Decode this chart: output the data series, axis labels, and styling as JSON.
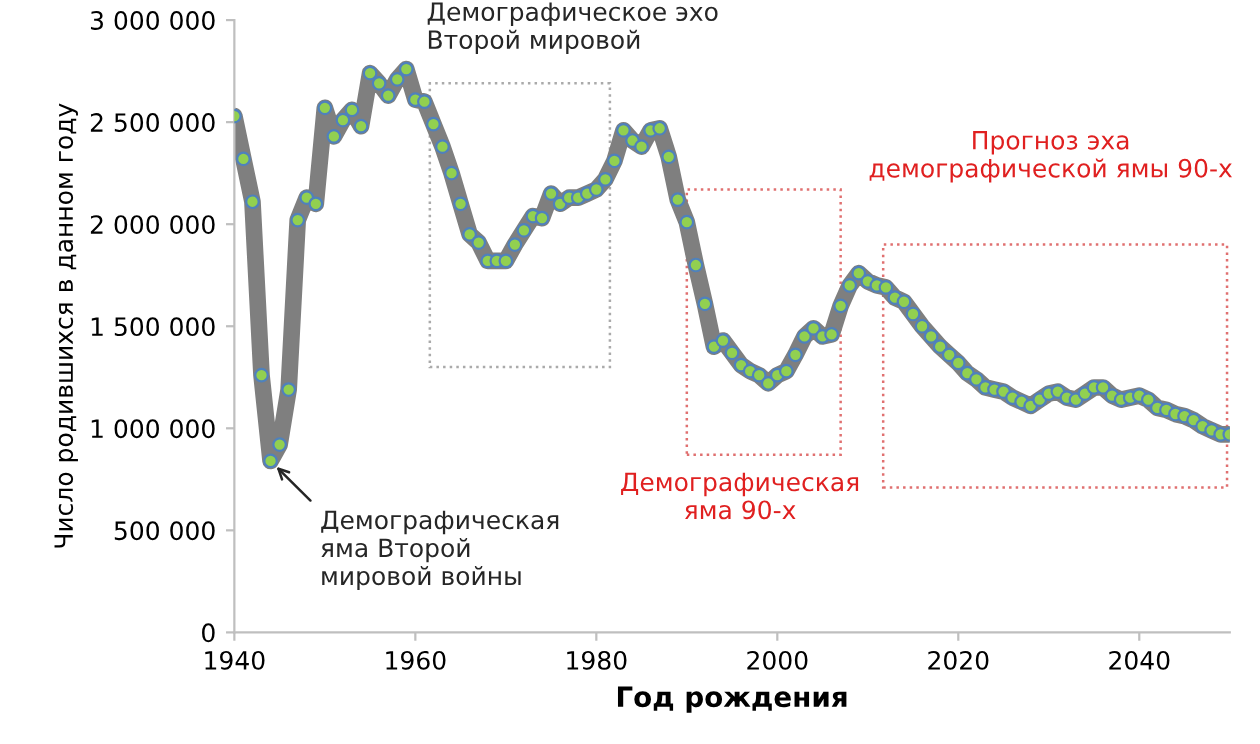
{
  "chart_data": {
    "type": "line",
    "xlabel": "Год рождения",
    "ylabel": "Число родившихся в данном году",
    "x": [
      1940,
      1941,
      1942,
      1943,
      1944,
      1945,
      1946,
      1947,
      1948,
      1949,
      1950,
      1951,
      1952,
      1953,
      1954,
      1955,
      1956,
      1957,
      1958,
      1959,
      1960,
      1961,
      1962,
      1963,
      1964,
      1965,
      1966,
      1967,
      1968,
      1969,
      1970,
      1971,
      1972,
      1973,
      1974,
      1975,
      1976,
      1977,
      1978,
      1979,
      1980,
      1981,
      1982,
      1983,
      1984,
      1985,
      1986,
      1987,
      1988,
      1989,
      1990,
      1991,
      1992,
      1993,
      1994,
      1995,
      1996,
      1997,
      1998,
      1999,
      2000,
      2001,
      2002,
      2003,
      2004,
      2005,
      2006,
      2007,
      2008,
      2009,
      2010,
      2011,
      2012,
      2013,
      2014,
      2015,
      2016,
      2017,
      2018,
      2019,
      2020,
      2021,
      2022,
      2023,
      2024,
      2025,
      2026,
      2027,
      2028,
      2029,
      2030,
      2031,
      2032,
      2033,
      2034,
      2035,
      2036,
      2037,
      2038,
      2039,
      2040,
      2041,
      2042,
      2043,
      2044,
      2045,
      2046,
      2047,
      2048,
      2049,
      2050
    ],
    "series": [
      {
        "color": "#7f7f7f",
        "values": [
          2530000,
          2320000,
          2110000,
          1260000,
          840000,
          920000,
          1190000,
          2020000,
          2130000,
          2100000,
          2570000,
          2430000,
          2510000,
          2560000,
          2480000,
          2740000,
          2690000,
          2630000,
          2710000,
          2760000,
          2610000,
          2600000,
          2490000,
          2380000,
          2250000,
          2100000,
          1950000,
          1910000,
          1820000,
          1820000,
          1820000,
          1900000,
          1970000,
          2040000,
          2030000,
          2150000,
          2100000,
          2130000,
          2130000,
          2150000,
          2170000,
          2220000,
          2310000,
          2460000,
          2410000,
          2380000,
          2460000,
          2470000,
          2330000,
          2120000,
          2010000,
          1800000,
          1610000,
          1400000,
          1430000,
          1370000,
          1310000,
          1280000,
          1260000,
          1220000,
          1260000,
          1280000,
          1360000,
          1450000,
          1490000,
          1450000,
          1460000,
          1600000,
          1700000,
          1760000,
          1720000,
          1700000,
          1690000,
          1640000,
          1620000,
          1560000,
          1500000,
          1450000,
          1400000,
          1360000,
          1320000,
          1270000,
          1240000,
          1200000,
          1190000,
          1180000,
          1150000,
          1130000,
          1110000,
          1140000,
          1170000,
          1180000,
          1150000,
          1140000,
          1170000,
          1200000,
          1200000,
          1160000,
          1140000,
          1150000,
          1160000,
          1140000,
          1100000,
          1090000,
          1070000,
          1060000,
          1040000,
          1010000,
          990000,
          970000,
          970000
        ]
      }
    ],
    "marker": "circle",
    "xlim": [
      1940,
      2050
    ],
    "xticks": [
      1940,
      1960,
      1980,
      2000,
      2020,
      2040
    ],
    "ylim": [
      0,
      3000000
    ],
    "yticks": [
      0,
      {
        "value": 500000,
        "label": "500 000"
      },
      {
        "value": 1000000,
        "label": "1 000 000"
      },
      {
        "value": 1500000,
        "label": "1 500 000"
      },
      {
        "value": 2000000,
        "label": "2 000 000"
      },
      {
        "value": 2500000,
        "label": "2 500 000"
      },
      {
        "value": 3000000,
        "label": "3 000 000"
      }
    ],
    "grid": false,
    "annotations": [
      "Демографическое эхо\nВторой мировой",
      {
        "text": "Демографическая\nяма Второй\nмировой войны",
        "x": 1944,
        "y": 840000
      },
      "Демографическая\nяма 90-х",
      "Прогноз эха\nдемографической ямы 90-х"
    ]
  }
}
